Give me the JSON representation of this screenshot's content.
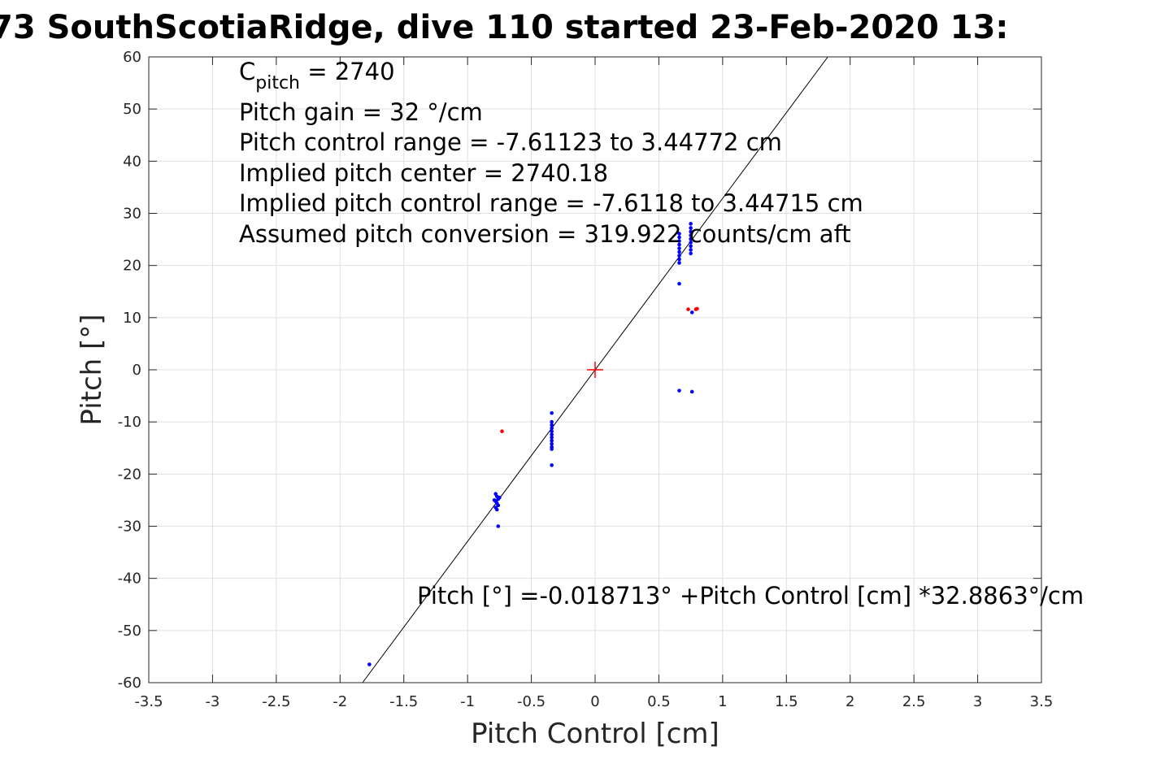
{
  "chart_data": {
    "type": "scatter",
    "title": "73 SouthScotiaRidge, dive 110 started 23-Feb-2020 13:",
    "xlabel": "Pitch Control [cm]",
    "ylabel": "Pitch [°]",
    "xlim": [
      -3.5,
      3.5
    ],
    "ylim": [
      -60,
      60
    ],
    "x_ticks": [
      -3.5,
      -3,
      -2.5,
      -2,
      -1.5,
      -1,
      -0.5,
      0,
      0.5,
      1,
      1.5,
      2,
      2.5,
      3,
      3.5
    ],
    "y_ticks": [
      -60,
      -50,
      -40,
      -30,
      -20,
      -10,
      0,
      10,
      20,
      30,
      40,
      50,
      60
    ],
    "grid": true,
    "legend": "none",
    "annotations": {
      "c_pitch_label": "C",
      "c_pitch_sub": "pitch",
      "c_pitch_value": " = 2740",
      "lines": [
        "Pitch gain = 32 °/cm",
        "Pitch control range = -7.61123 to 3.44772 cm",
        "Implied pitch center = 2740.18",
        "Implied pitch control range = -7.6118 to 3.44715 cm",
        "Assumed pitch conversion = 319.922 counts/cm aft"
      ],
      "fit_equation": "Pitch [°] =-0.018713° +Pitch Control [cm] *32.8863°/cm"
    },
    "fit_line": {
      "intercept": -0.018713,
      "slope": 32.8863,
      "color": "#000000"
    },
    "center_marker": {
      "x": 0,
      "y": 0,
      "color": "#ff0000"
    },
    "series": [
      {
        "color": "#0000ff",
        "points": [
          [
            -1.77,
            -56.5
          ],
          [
            -0.76,
            -30.0
          ],
          [
            -0.78,
            -23.8
          ],
          [
            -0.77,
            -24.3
          ],
          [
            -0.76,
            -24.8
          ],
          [
            -0.78,
            -25.2
          ],
          [
            -0.77,
            -25.6
          ],
          [
            -0.76,
            -26.0
          ],
          [
            -0.78,
            -26.4
          ],
          [
            -0.77,
            -26.8
          ],
          [
            -0.79,
            -25.0
          ],
          [
            -0.75,
            -24.5
          ],
          [
            -0.34,
            -8.3
          ],
          [
            -0.34,
            -10.0
          ],
          [
            -0.34,
            -10.6
          ],
          [
            -0.34,
            -11.2
          ],
          [
            -0.34,
            -11.8
          ],
          [
            -0.34,
            -12.4
          ],
          [
            -0.34,
            -13.0
          ],
          [
            -0.34,
            -13.6
          ],
          [
            -0.34,
            -14.2
          ],
          [
            -0.34,
            -14.8
          ],
          [
            -0.34,
            -15.2
          ],
          [
            -0.34,
            -18.3
          ],
          [
            0.66,
            20.5
          ],
          [
            0.66,
            21.2
          ],
          [
            0.66,
            21.9
          ],
          [
            0.66,
            22.6
          ],
          [
            0.66,
            23.3
          ],
          [
            0.66,
            24.0
          ],
          [
            0.66,
            24.7
          ],
          [
            0.66,
            25.4
          ],
          [
            0.66,
            26.1
          ],
          [
            0.66,
            16.5
          ],
          [
            0.66,
            -4.0
          ],
          [
            0.75,
            22.3
          ],
          [
            0.75,
            23.0
          ],
          [
            0.75,
            23.7
          ],
          [
            0.75,
            24.4
          ],
          [
            0.75,
            25.1
          ],
          [
            0.75,
            25.8
          ],
          [
            0.75,
            26.5
          ],
          [
            0.75,
            27.2
          ],
          [
            0.75,
            28.0
          ],
          [
            0.76,
            11.0
          ],
          [
            0.76,
            -4.2
          ]
        ]
      },
      {
        "color": "#ff0000",
        "points": [
          [
            -0.73,
            -11.8
          ],
          [
            0.73,
            11.6
          ],
          [
            0.79,
            11.6
          ],
          [
            0.8,
            11.7
          ]
        ]
      }
    ]
  }
}
